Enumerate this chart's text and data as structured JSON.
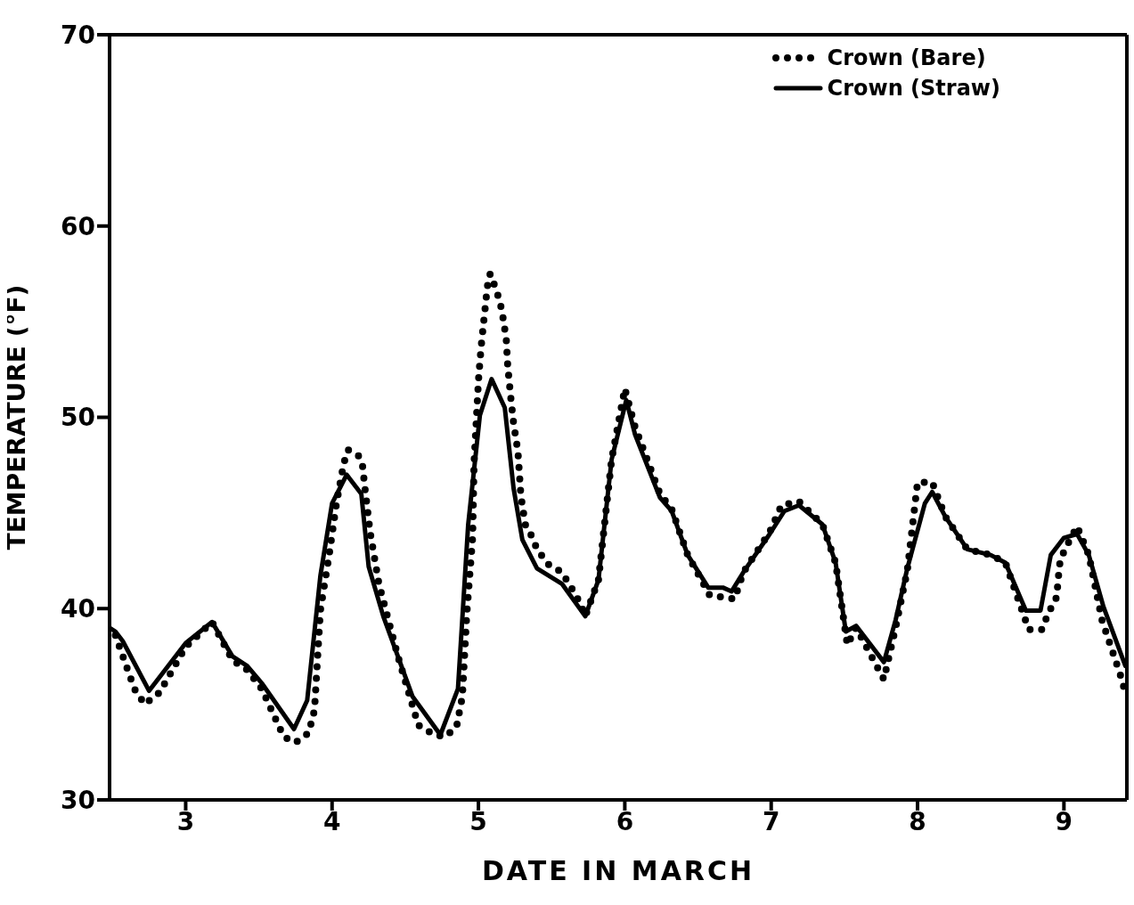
{
  "chart_data": {
    "type": "line",
    "xlabel": "DATE IN MARCH",
    "ylabel": "TEMPERATURE (°F)",
    "xlim": [
      2.48,
      9.43
    ],
    "xticks": [
      3,
      4,
      5,
      6,
      7,
      8,
      9
    ],
    "ylim": [
      30,
      70
    ],
    "yticks": [
      30,
      40,
      50,
      60,
      70
    ],
    "legend": "top right",
    "marker": "none",
    "series": [
      {
        "name": "Crown (Bare)",
        "color": "#000000",
        "line_style": "dotted",
        "x": [
          2.52,
          2.65,
          2.72,
          2.82,
          3.0,
          3.18,
          3.32,
          3.42,
          3.52,
          3.67,
          3.75,
          3.84,
          3.88,
          3.92,
          3.98,
          4.03,
          4.08,
          4.11,
          4.18,
          4.21,
          4.22,
          4.26,
          4.32,
          4.45,
          4.59,
          4.7,
          4.77,
          4.85,
          4.89,
          4.92,
          4.96,
          4.97,
          5.0,
          5.01,
          5.02,
          5.04,
          5.05,
          5.06,
          5.08,
          5.12,
          5.14,
          5.16,
          5.19,
          5.2,
          5.22,
          5.24,
          5.27,
          5.29,
          5.32,
          5.37,
          5.4,
          5.48,
          5.57,
          5.65,
          5.7,
          5.73,
          5.82,
          5.91,
          6.0,
          6.07,
          6.24,
          6.32,
          6.43,
          6.58,
          6.67,
          6.75,
          6.81,
          6.99,
          7.07,
          7.19,
          7.35,
          7.44,
          7.52,
          7.58,
          7.77,
          7.85,
          7.93,
          8.0,
          8.1,
          8.19,
          8.34,
          8.5,
          8.6,
          8.76,
          8.85,
          8.89,
          8.95,
          8.97,
          9.0,
          9.09,
          9.17,
          9.26,
          9.33,
          9.4,
          9.42
        ],
        "values": [
          38.6,
          35.8,
          35.0,
          35.6,
          38.0,
          39.3,
          37.3,
          36.8,
          35.8,
          33.3,
          33.0,
          33.5,
          34.7,
          39.9,
          42.8,
          45.5,
          47.6,
          48.3,
          48.0,
          47.4,
          46.6,
          44.0,
          41.3,
          37.5,
          33.9,
          33.4,
          33.3,
          33.8,
          35.4,
          39.7,
          43.7,
          47.6,
          51.9,
          52.9,
          53.8,
          55.3,
          56.0,
          56.8,
          57.5,
          56.7,
          56.2,
          55.6,
          54.1,
          52.7,
          51.1,
          49.7,
          48.2,
          45.9,
          44.4,
          43.7,
          43.1,
          42.3,
          41.9,
          40.9,
          40.2,
          39.6,
          41.5,
          47.8,
          51.5,
          49.5,
          46.0,
          45.2,
          42.8,
          40.7,
          40.6,
          40.5,
          41.9,
          44.0,
          45.4,
          45.6,
          44.4,
          42.4,
          38.1,
          39.0,
          36.3,
          39.0,
          42.0,
          46.6,
          46.6,
          44.8,
          43.1,
          42.8,
          42.4,
          38.9,
          38.9,
          39.7,
          40.6,
          42.3,
          43.0,
          44.3,
          42.8,
          39.4,
          37.8,
          36.2,
          35.5
        ]
      },
      {
        "name": "Crown (Straw)",
        "color": "#000000",
        "line_style": "solid",
        "x": [
          2.48,
          2.52,
          2.57,
          2.75,
          3.0,
          3.18,
          3.32,
          3.42,
          3.52,
          3.74,
          3.83,
          3.92,
          4.0,
          4.1,
          4.2,
          4.25,
          4.35,
          4.55,
          4.74,
          4.86,
          4.93,
          5.01,
          5.09,
          5.18,
          5.24,
          5.3,
          5.4,
          5.57,
          5.73,
          5.82,
          5.91,
          6.01,
          6.07,
          6.24,
          6.32,
          6.43,
          6.57,
          6.67,
          6.73,
          6.81,
          6.99,
          7.09,
          7.19,
          7.35,
          7.44,
          7.51,
          7.58,
          7.77,
          7.85,
          7.93,
          8.05,
          8.1,
          8.19,
          8.34,
          8.5,
          8.6,
          8.74,
          8.84,
          8.91,
          9.0,
          9.09,
          9.17,
          9.27,
          9.42
        ],
        "values": [
          39.0,
          38.8,
          38.3,
          35.7,
          38.2,
          39.3,
          37.5,
          37.0,
          36.1,
          33.7,
          35.2,
          41.7,
          45.5,
          47.0,
          46.0,
          42.2,
          39.6,
          35.4,
          33.4,
          35.8,
          44.4,
          50.1,
          52.0,
          50.5,
          46.3,
          43.6,
          42.1,
          41.3,
          39.6,
          41.5,
          47.8,
          50.9,
          49.1,
          45.8,
          45.1,
          42.8,
          41.1,
          41.1,
          40.9,
          41.9,
          43.9,
          45.1,
          45.4,
          44.4,
          42.4,
          38.8,
          39.1,
          37.2,
          39.4,
          42.1,
          45.5,
          46.1,
          44.8,
          43.1,
          42.8,
          42.4,
          39.9,
          39.9,
          42.8,
          43.7,
          43.9,
          42.8,
          40.1,
          37.0
        ]
      }
    ]
  }
}
